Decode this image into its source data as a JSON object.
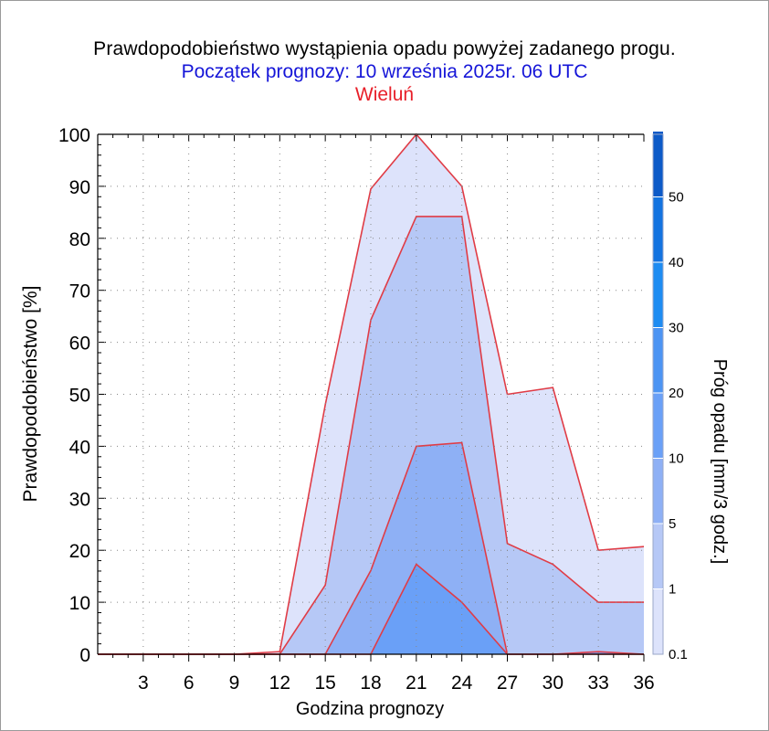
{
  "header": {
    "title": "Prawdopodobieństwo wystąpienia opadu powyżej zadanego progu.",
    "subtitle": "Początek prognozy: 10 września 2025r. 06 UTC",
    "location": "Wieluń"
  },
  "colors": {
    "title": "#000000",
    "subtitle": "#1515d8",
    "location": "#e8202a",
    "outline": "#e03c46",
    "band_01": "#dde3fb",
    "band_1": "#b6c8f6",
    "band_5": "#8eb0f5",
    "band_10": "#6aa0f7",
    "band_20": "#4c94f3",
    "band_30": "#1e8cf2",
    "band_40": "#1373e0",
    "band_50": "#0c5ac8",
    "band_top": "#0a3fa6"
  },
  "chart_data": {
    "type": "area",
    "title": "Prawdopodobieństwo wystąpienia opadu powyżej zadanego progu.",
    "xlabel": "Godzina prognozy",
    "ylabel": "Prawdopodobieństwo [%]",
    "xlim": [
      0,
      36
    ],
    "ylim": [
      0,
      100
    ],
    "x_ticks": [
      3,
      6,
      9,
      12,
      15,
      18,
      21,
      24,
      27,
      30,
      33,
      36
    ],
    "y_ticks": [
      0,
      10,
      20,
      30,
      40,
      50,
      60,
      70,
      80,
      90,
      100
    ],
    "x": [
      0,
      3,
      6,
      9,
      12,
      15,
      18,
      21,
      24,
      27,
      30,
      33,
      36
    ],
    "series": [
      {
        "threshold": 0.1,
        "values": [
          0,
          0,
          0,
          0,
          0.5,
          48,
          89.5,
          100,
          90,
          50,
          51.3,
          20,
          20.7
        ]
      },
      {
        "threshold": 1,
        "values": [
          0,
          0,
          0,
          0,
          0,
          13.3,
          64.3,
          84.2,
          84.2,
          21.3,
          17.3,
          10,
          10
        ]
      },
      {
        "threshold": 5,
        "values": [
          0,
          0,
          0,
          0,
          0,
          0,
          16.1,
          40,
          40.7,
          0,
          0,
          0,
          0
        ]
      },
      {
        "threshold": 10,
        "values": [
          0,
          0,
          0,
          0,
          0,
          0,
          0,
          17.3,
          10,
          0,
          0,
          0.5,
          0
        ]
      }
    ],
    "colorbar": {
      "label": "Próg opadu [mm/3 godz.]",
      "tick_labels": [
        "0.1",
        "1",
        "5",
        "10",
        "20",
        "30",
        "40",
        "50"
      ]
    }
  }
}
